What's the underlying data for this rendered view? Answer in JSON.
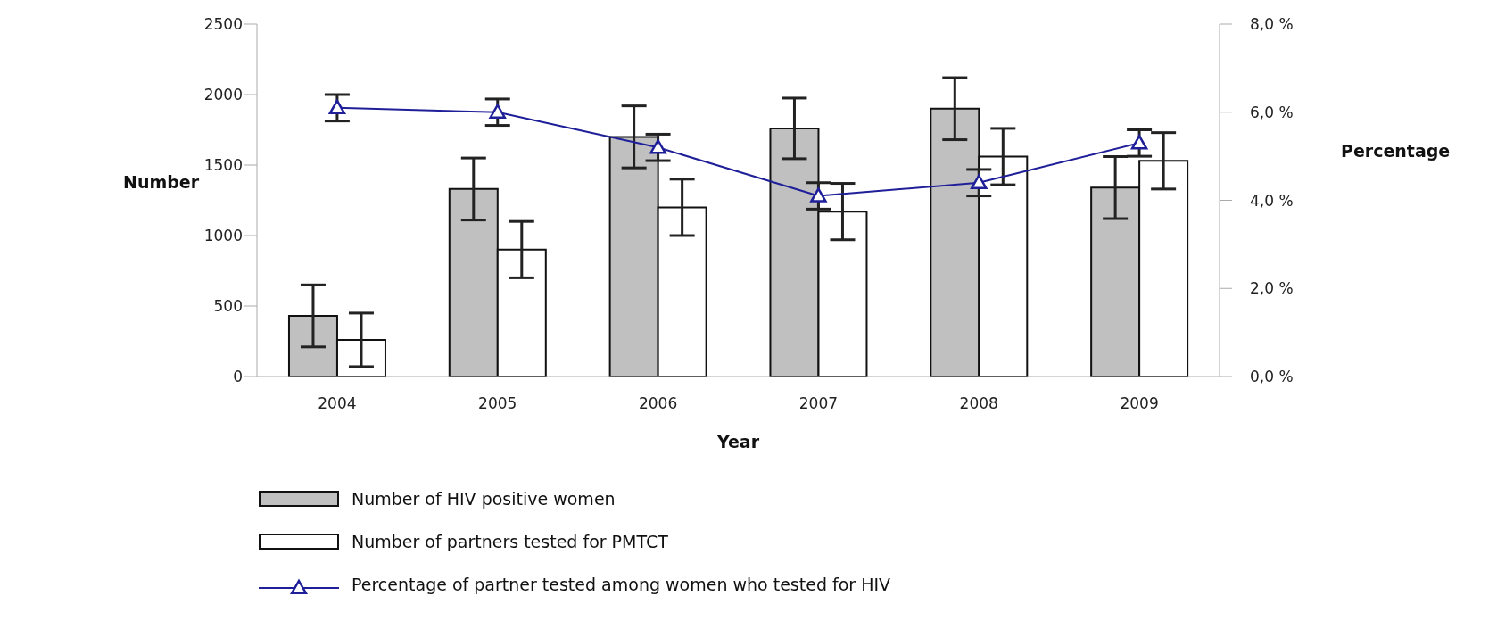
{
  "chart_data": {
    "type": "bar",
    "xlabel": "Year",
    "ylabel": "Number",
    "y2label": "Percentage",
    "categories": [
      "2004",
      "2005",
      "2006",
      "2007",
      "2008",
      "2009"
    ],
    "series": [
      {
        "name": "Number of HIV positive women",
        "color": "#c0c0c0",
        "values": [
          430,
          1330,
          1700,
          1760,
          1900,
          1340
        ],
        "errors": [
          220,
          220,
          220,
          215,
          220,
          220
        ]
      },
      {
        "name": "Number of partners tested for PMTCT",
        "color": "#ffffff",
        "values": [
          260,
          900,
          1200,
          1170,
          1560,
          1530
        ],
        "errors": [
          190,
          200,
          200,
          200,
          200,
          200
        ]
      },
      {
        "name": "Percentage of partner tested among women who tested for HIV",
        "type": "line",
        "axis": "y2",
        "color": "#1f1f9a",
        "marker": "triangle",
        "values": [
          6.1,
          6.0,
          5.2,
          4.1,
          4.4,
          5.3
        ],
        "errors": [
          0.3,
          0.3,
          0.3,
          0.3,
          0.3,
          0.3
        ]
      }
    ],
    "ylim": [
      0,
      2500
    ],
    "yticks": [
      0,
      500,
      1000,
      1500,
      2000,
      2500
    ],
    "y2lim": [
      0,
      8
    ],
    "y2ticks": [
      {
        "value": 0,
        "label": "0,0 %"
      },
      {
        "value": 2,
        "label": "2,0 %"
      },
      {
        "value": 4,
        "label": "4,0 %"
      },
      {
        "value": 6,
        "label": "6,0 %"
      },
      {
        "value": 8,
        "label": "8,0 %"
      }
    ],
    "grid": false,
    "legend": "bottom"
  }
}
